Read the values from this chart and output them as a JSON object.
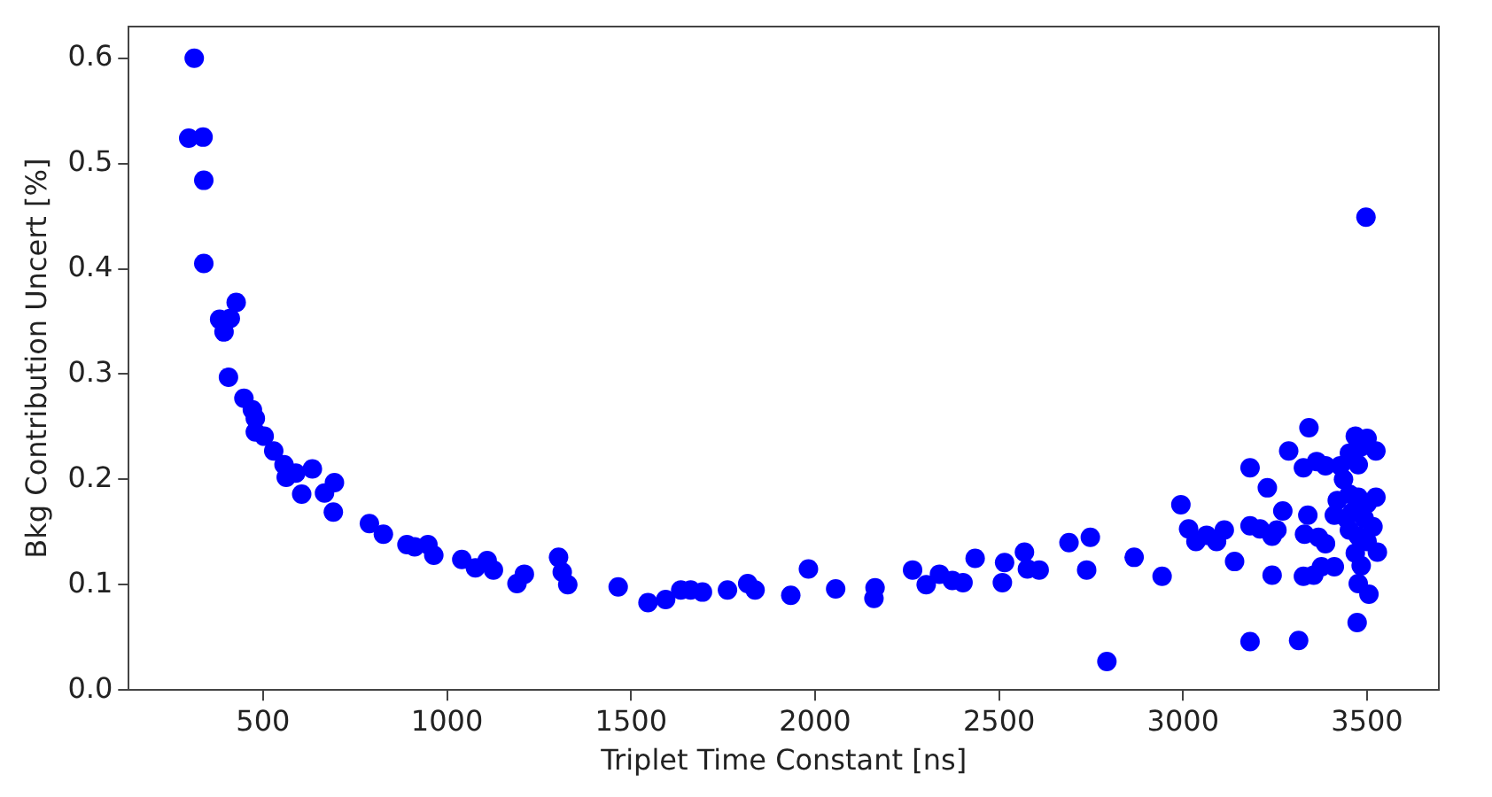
{
  "chart_data": {
    "type": "scatter",
    "xlabel": "Triplet Time Constant [ns]",
    "ylabel": "Bkg Contribution Uncert [%]",
    "xlim": [
      135,
      3695
    ],
    "ylim": [
      0,
      0.63
    ],
    "xticks": [
      500,
      1000,
      1500,
      2000,
      2500,
      3000,
      3500
    ],
    "yticks": [
      {
        "value": 0,
        "label": "0.0"
      },
      {
        "value": 0.1,
        "label": "0.1"
      },
      {
        "value": 0.2,
        "label": "0.2"
      },
      {
        "value": 0.3,
        "label": "0.3"
      },
      {
        "value": 0.4,
        "label": "0.4"
      },
      {
        "value": 0.5,
        "label": "0.5"
      },
      {
        "value": 0.6,
        "label": "0.6"
      }
    ],
    "grid": false,
    "legend": false,
    "marker": "circle",
    "series": [
      {
        "color": "#0000ff",
        "x": [
          313,
          298,
          337,
          339,
          339,
          427,
          382,
          411,
          394,
          406,
          448,
          471,
          479,
          479,
          503,
          529,
          557,
          563,
          589,
          634,
          605,
          694,
          667,
          691,
          789,
          827,
          891,
          912,
          948,
          964,
          1040,
          1077,
          1109,
          1126,
          1190,
          1210,
          1303,
          1313,
          1328,
          1465,
          1546,
          1594,
          1635,
          1662,
          1694,
          1762,
          1817,
          1837,
          1934,
          1982,
          2056,
          2163,
          2160,
          2265,
          2302,
          2338,
          2373,
          2402,
          2435,
          2509,
          2515,
          2569,
          2577,
          2609,
          2690,
          2748,
          2738,
          2793,
          3497,
          2867,
          2943,
          2994,
          3015,
          3035,
          3064,
          3091,
          3112,
          3140,
          3182,
          3182,
          3182,
          3209,
          3229,
          3242,
          3242,
          3255,
          3271,
          3287,
          3314,
          3327,
          3330,
          3327,
          3339,
          3342,
          3355,
          3363,
          3368,
          3387,
          3387,
          3376,
          3411,
          3419,
          3427,
          3436,
          3411,
          3444,
          3452,
          3468,
          3500,
          3484,
          3524,
          3476,
          3452,
          3476,
          3500,
          3524,
          3452,
          3476,
          3500,
          3516,
          3528,
          3468,
          3484,
          3476,
          3505,
          3473,
          3460,
          3492
        ],
        "values": [
          0.6,
          0.524,
          0.525,
          0.484,
          0.405,
          0.368,
          0.352,
          0.353,
          0.34,
          0.297,
          0.277,
          0.266,
          0.258,
          0.245,
          0.241,
          0.227,
          0.214,
          0.202,
          0.206,
          0.21,
          0.186,
          0.197,
          0.187,
          0.169,
          0.158,
          0.148,
          0.138,
          0.136,
          0.138,
          0.128,
          0.124,
          0.116,
          0.123,
          0.114,
          0.101,
          0.11,
          0.126,
          0.112,
          0.1,
          0.098,
          0.083,
          0.086,
          0.095,
          0.095,
          0.093,
          0.095,
          0.101,
          0.095,
          0.09,
          0.115,
          0.096,
          0.097,
          0.087,
          0.114,
          0.1,
          0.11,
          0.104,
          0.102,
          0.125,
          0.102,
          0.121,
          0.131,
          0.115,
          0.114,
          0.14,
          0.145,
          0.114,
          0.027,
          0.449,
          0.126,
          0.108,
          0.176,
          0.153,
          0.141,
          0.147,
          0.141,
          0.152,
          0.122,
          0.211,
          0.156,
          0.046,
          0.153,
          0.192,
          0.146,
          0.109,
          0.152,
          0.17,
          0.227,
          0.047,
          0.211,
          0.148,
          0.108,
          0.166,
          0.249,
          0.109,
          0.217,
          0.145,
          0.213,
          0.139,
          0.117,
          0.117,
          0.18,
          0.213,
          0.2,
          0.166,
          0.163,
          0.225,
          0.241,
          0.239,
          0.231,
          0.227,
          0.214,
          0.186,
          0.183,
          0.177,
          0.183,
          0.152,
          0.146,
          0.141,
          0.155,
          0.131,
          0.13,
          0.118,
          0.101,
          0.091,
          0.064,
          0.169,
          0.163
        ]
      }
    ]
  }
}
